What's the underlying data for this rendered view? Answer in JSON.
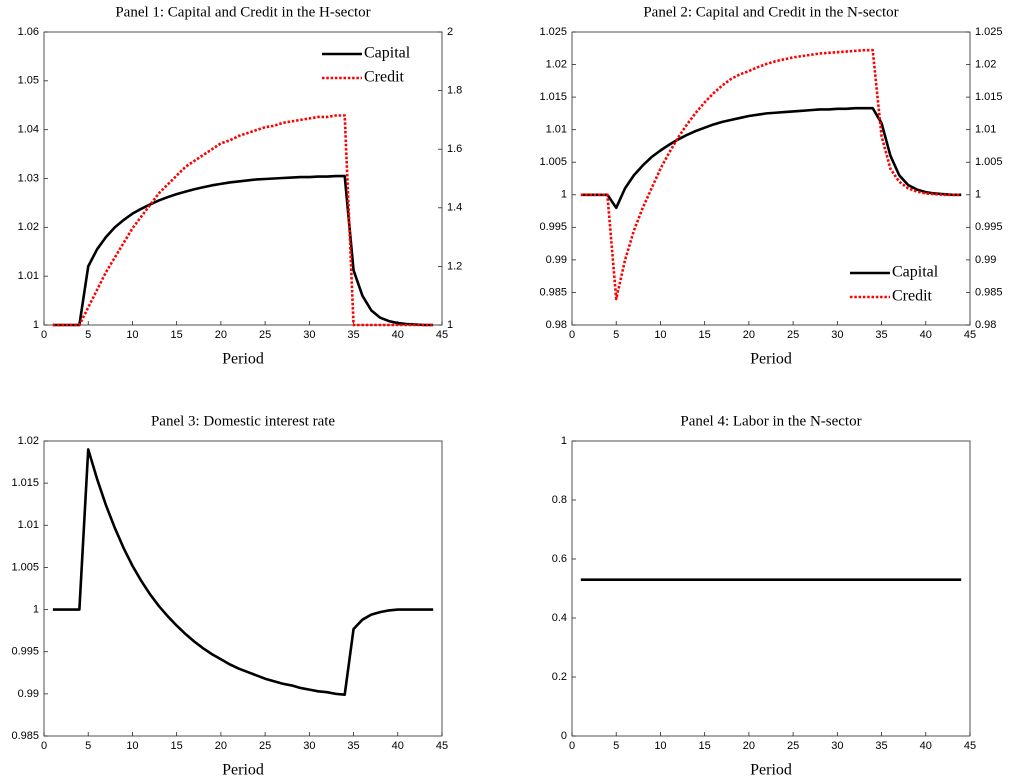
{
  "chart_data": [
    {
      "type": "line",
      "title": "Panel 1: Capital and Credit in the H-sector",
      "xlabel": "Period",
      "x": [
        1,
        2,
        3,
        4,
        5,
        6,
        7,
        8,
        9,
        10,
        11,
        12,
        13,
        14,
        15,
        16,
        17,
        18,
        19,
        20,
        21,
        22,
        23,
        24,
        25,
        26,
        27,
        28,
        29,
        30,
        31,
        32,
        33,
        34,
        35,
        36,
        37,
        38,
        39,
        40,
        41,
        42,
        43,
        44
      ],
      "xlim": [
        0,
        45
      ],
      "xticks": [
        0,
        5,
        10,
        15,
        20,
        25,
        30,
        35,
        40,
        45
      ],
      "ylim": [
        1,
        1.06
      ],
      "yticks": [
        1,
        1.01,
        1.02,
        1.03,
        1.04,
        1.05,
        1.06
      ],
      "y2lim": [
        1,
        2
      ],
      "y2ticks": [
        1,
        1.2,
        1.4,
        1.6,
        1.8,
        2
      ],
      "legend": "upper right",
      "series": [
        {
          "name": "Capital",
          "color": "#000000",
          "style": "solid",
          "values": [
            1,
            1,
            1,
            1,
            1.012,
            1.0155,
            1.018,
            1.02,
            1.0215,
            1.0228,
            1.0238,
            1.0247,
            1.0255,
            1.0262,
            1.0268,
            1.0273,
            1.0278,
            1.0282,
            1.0286,
            1.0289,
            1.0292,
            1.0294,
            1.0296,
            1.0298,
            1.0299,
            1.03,
            1.0301,
            1.0302,
            1.0303,
            1.0303,
            1.0304,
            1.0304,
            1.0305,
            1.0305,
            1.0112,
            1.006,
            1.003,
            1.0015,
            1.0008,
            1.0004,
            1.0002,
            1.0001,
            1,
            1
          ]
        },
        {
          "name": "Credit",
          "color": "#ff0000",
          "style": "dotted",
          "axis": "y2",
          "values": [
            1,
            1,
            1,
            1,
            1.06,
            1.12,
            1.18,
            1.23,
            1.28,
            1.33,
            1.37,
            1.41,
            1.45,
            1.48,
            1.51,
            1.54,
            1.56,
            1.58,
            1.6,
            1.62,
            1.63,
            1.645,
            1.655,
            1.665,
            1.675,
            1.68,
            1.69,
            1.695,
            1.7,
            1.705,
            1.71,
            1.71,
            1.715,
            1.715,
            1,
            1,
            1,
            1,
            1,
            1,
            1,
            1,
            1,
            1
          ]
        }
      ]
    },
    {
      "type": "line",
      "title": "Panel 2: Capital and Credit in the N-sector",
      "xlabel": "Period",
      "x": [
        1,
        2,
        3,
        4,
        5,
        6,
        7,
        8,
        9,
        10,
        11,
        12,
        13,
        14,
        15,
        16,
        17,
        18,
        19,
        20,
        21,
        22,
        23,
        24,
        25,
        26,
        27,
        28,
        29,
        30,
        31,
        32,
        33,
        34,
        35,
        36,
        37,
        38,
        39,
        40,
        41,
        42,
        43,
        44
      ],
      "xlim": [
        0,
        45
      ],
      "xticks": [
        0,
        5,
        10,
        15,
        20,
        25,
        30,
        35,
        40,
        45
      ],
      "ylim": [
        0.98,
        1.025
      ],
      "yticks": [
        0.98,
        0.985,
        0.99,
        0.995,
        1,
        1.005,
        1.01,
        1.015,
        1.02,
        1.025
      ],
      "y2lim": [
        0.98,
        1.025
      ],
      "y2ticks": [
        0.98,
        0.985,
        0.99,
        0.995,
        1,
        1.005,
        1.01,
        1.015,
        1.02,
        1.025
      ],
      "legend": "lower right",
      "series": [
        {
          "name": "Capital",
          "color": "#000000",
          "style": "solid",
          "values": [
            1,
            1,
            1,
            1,
            0.998,
            1.001,
            1.003,
            1.0045,
            1.0058,
            1.0068,
            1.0077,
            1.0085,
            1.0092,
            1.0098,
            1.0103,
            1.0108,
            1.0112,
            1.0115,
            1.0118,
            1.0121,
            1.0123,
            1.0125,
            1.0126,
            1.0127,
            1.0128,
            1.0129,
            1.013,
            1.0131,
            1.0131,
            1.0132,
            1.0132,
            1.0133,
            1.0133,
            1.0133,
            1.011,
            1.006,
            1.003,
            1.0015,
            1.0008,
            1.0004,
            1.0002,
            1.0001,
            1,
            1
          ]
        },
        {
          "name": "Credit",
          "color": "#ff0000",
          "style": "dotted",
          "axis": "y2",
          "values": [
            1,
            1,
            1,
            1,
            0.984,
            0.99,
            0.9945,
            0.998,
            1.001,
            1.004,
            1.0065,
            1.0088,
            1.0108,
            1.0126,
            1.0142,
            1.0156,
            1.0168,
            1.0178,
            1.0185,
            1.019,
            1.0196,
            1.0201,
            1.0205,
            1.0208,
            1.0211,
            1.0213,
            1.0215,
            1.0217,
            1.0218,
            1.0219,
            1.022,
            1.0221,
            1.0222,
            1.0222,
            1.009,
            1.004,
            1.002,
            1.001,
            1.0005,
            1.0002,
            1.0001,
            1,
            1,
            1
          ]
        }
      ]
    },
    {
      "type": "line",
      "title": "Panel 3: Domestic interest rate",
      "xlabel": "Period",
      "x": [
        1,
        2,
        3,
        4,
        5,
        6,
        7,
        8,
        9,
        10,
        11,
        12,
        13,
        14,
        15,
        16,
        17,
        18,
        19,
        20,
        21,
        22,
        23,
        24,
        25,
        26,
        27,
        28,
        29,
        30,
        31,
        32,
        33,
        34,
        35,
        36,
        37,
        38,
        39,
        40,
        41,
        42,
        43,
        44
      ],
      "xlim": [
        0,
        45
      ],
      "xticks": [
        0,
        5,
        10,
        15,
        20,
        25,
        30,
        35,
        40,
        45
      ],
      "ylim": [
        0.985,
        1.02
      ],
      "yticks": [
        0.985,
        0.99,
        0.995,
        1,
        1.005,
        1.01,
        1.015,
        1.02
      ],
      "series": [
        {
          "color": "#000000",
          "style": "solid",
          "values": [
            1,
            1,
            1,
            1,
            1.019,
            1.0155,
            1.0124,
            1.0097,
            1.0073,
            1.0052,
            1.0034,
            1.0018,
            1.0004,
            0.9992,
            0.9981,
            0.9971,
            0.9962,
            0.9954,
            0.9947,
            0.9941,
            0.9935,
            0.993,
            0.9926,
            0.9922,
            0.9918,
            0.9915,
            0.9912,
            0.991,
            0.9907,
            0.9905,
            0.9903,
            0.9902,
            0.99,
            0.9899,
            0.9977,
            0.9988,
            0.9994,
            0.9997,
            0.9999,
            1,
            1,
            1,
            1,
            1
          ]
        }
      ]
    },
    {
      "type": "line",
      "title": "Panel 4: Labor in the N-sector",
      "xlabel": "Period",
      "x": [
        1,
        2,
        3,
        4,
        5,
        6,
        7,
        8,
        9,
        10,
        11,
        12,
        13,
        14,
        15,
        16,
        17,
        18,
        19,
        20,
        21,
        22,
        23,
        24,
        25,
        26,
        27,
        28,
        29,
        30,
        31,
        32,
        33,
        34,
        35,
        36,
        37,
        38,
        39,
        40,
        41,
        42,
        43,
        44
      ],
      "xlim": [
        0,
        45
      ],
      "xticks": [
        0,
        5,
        10,
        15,
        20,
        25,
        30,
        35,
        40,
        45
      ],
      "ylim": [
        0,
        1
      ],
      "yticks": [
        0,
        0.2,
        0.4,
        0.6,
        0.8,
        1
      ],
      "series": [
        {
          "color": "#000000",
          "style": "solid",
          "values": [
            0.53,
            0.53,
            0.53,
            0.53,
            0.53,
            0.53,
            0.53,
            0.53,
            0.53,
            0.53,
            0.53,
            0.53,
            0.53,
            0.53,
            0.53,
            0.53,
            0.53,
            0.53,
            0.53,
            0.53,
            0.53,
            0.53,
            0.53,
            0.53,
            0.53,
            0.53,
            0.53,
            0.53,
            0.53,
            0.53,
            0.53,
            0.53,
            0.53,
            0.53,
            0.53,
            0.53,
            0.53,
            0.53,
            0.53,
            0.53,
            0.53,
            0.53,
            0.53,
            0.53
          ]
        }
      ]
    }
  ]
}
